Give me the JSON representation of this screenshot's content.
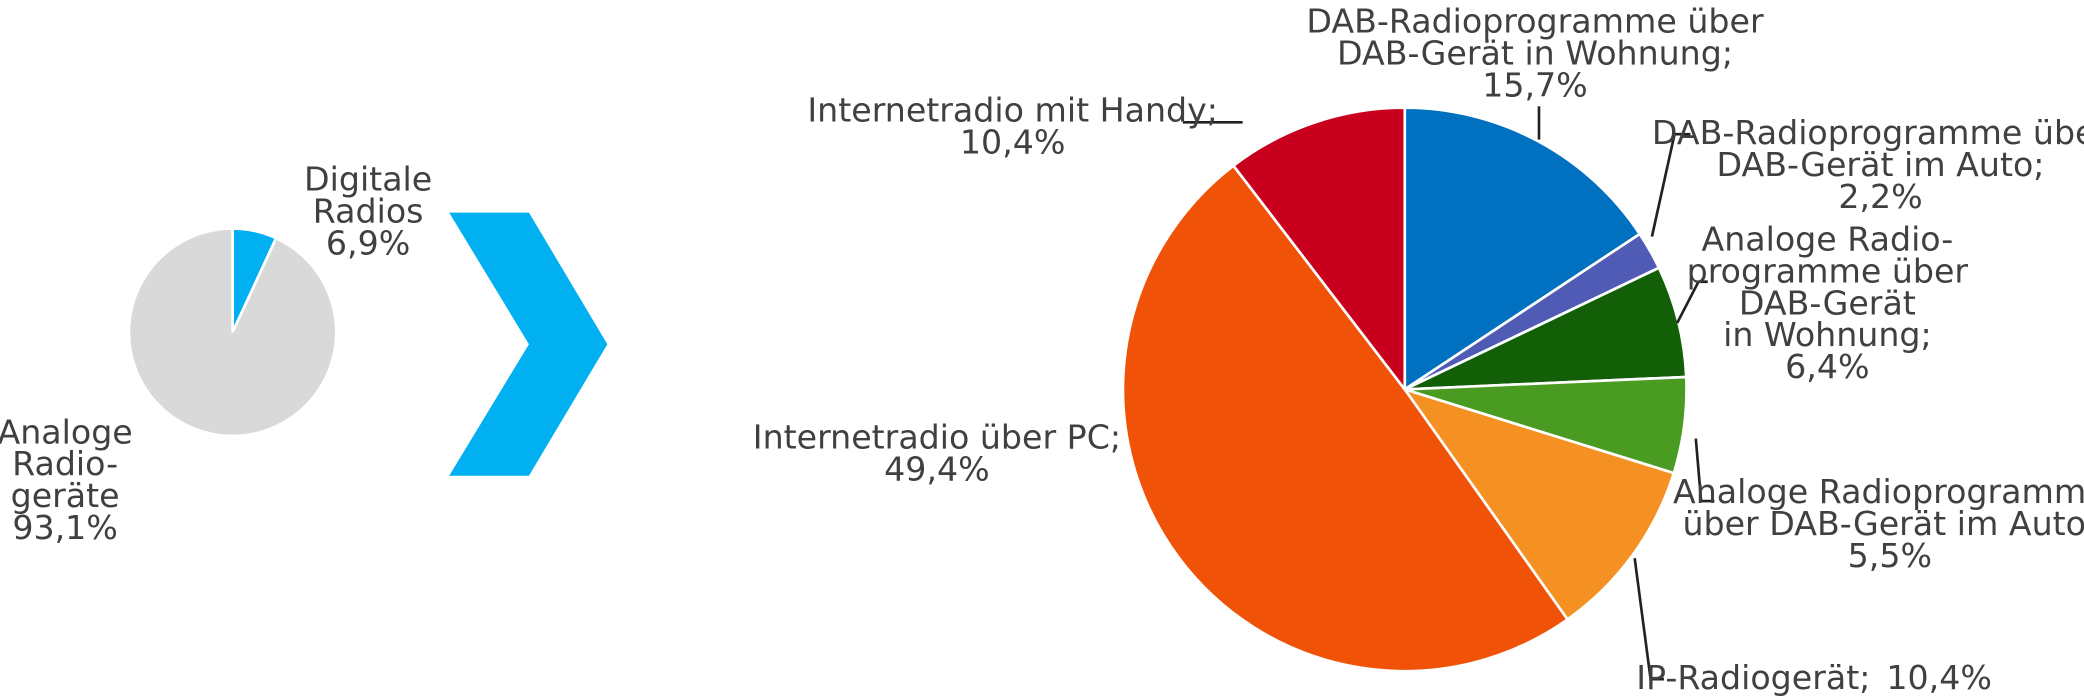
{
  "chart_data": [
    {
      "type": "pie",
      "categories": [
        "Digitale\nRadios",
        "Analoge\nRadio-\ngeräte"
      ],
      "values": [
        6.9,
        93.1
      ],
      "value_labels": [
        "6,9%",
        "93,1%"
      ],
      "colors": [
        "#00b0f0",
        "#d9d9d9"
      ]
    },
    {
      "type": "pie",
      "categories": [
        "DAB-Radioprogramme über\nDAB-Gerät in Wohnung;",
        "DAB-Radioprogramme über\nDAB-Gerät im Auto;",
        "Analoge Radio-\nprogramme über\nDAB-Gerät\nin Wohnung;",
        "Analoge Radioprogramme\nüber DAB-Gerät im Auto;",
        "IP-Radiogerät;",
        "Internetradio über PC;",
        "Internetradio mit Handy;"
      ],
      "values": [
        15.7,
        2.2,
        6.4,
        5.5,
        10.4,
        49.4,
        10.4
      ],
      "value_labels": [
        "15,7%",
        "2,2%",
        "6,4%",
        "5,5%",
        "10,4%",
        "49,4%",
        "10,4%"
      ],
      "colors": [
        "#0070c0",
        "#4f5bb5",
        "#125f08",
        "#4a9b22",
        "#f59122",
        "#f05308",
        "#c8001e"
      ]
    }
  ]
}
